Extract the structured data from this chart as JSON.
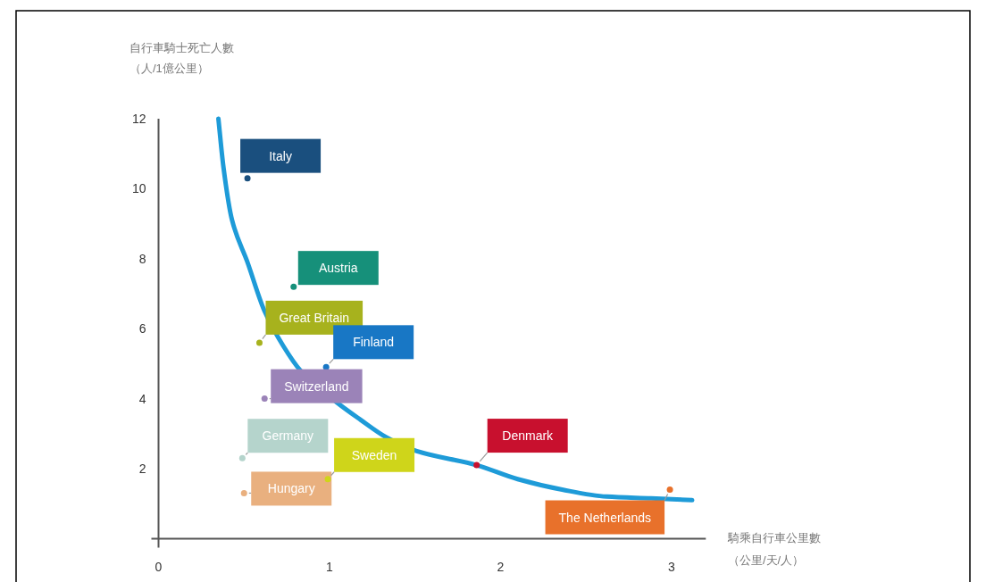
{
  "chart_data": {
    "type": "line",
    "xlabel": "騎乘自行車公里數（公里/天/人）",
    "ylabel": "自行車騎士死亡人數（人/1億公里）",
    "xlim": [
      0,
      3.2
    ],
    "ylim": [
      0,
      12
    ],
    "xticks": [
      0,
      1,
      2,
      3
    ],
    "yticks": [
      2,
      4,
      6,
      8,
      10,
      12
    ],
    "series": [
      {
        "color": "#1e9bd8",
        "line_style": "solid",
        "x": [
          0.35,
          0.38,
          0.43,
          0.52,
          0.62,
          0.73,
          0.83,
          1.04,
          1.18,
          1.33,
          1.51,
          1.86,
          2.1,
          2.36,
          2.62,
          2.88,
          3.12
        ],
        "values": [
          12.0,
          10.6,
          9.1,
          7.9,
          6.5,
          5.5,
          4.8,
          3.9,
          3.4,
          2.9,
          2.5,
          2.1,
          1.7,
          1.4,
          1.2,
          1.15,
          1.1
        ]
      },
      {
        "type": "scatter",
        "marker": "circle",
        "x": [
          0.52,
          0.79,
          0.59,
          0.98,
          0.62,
          0.49,
          0.5,
          0.99,
          1.86,
          2.99
        ],
        "values": [
          10.3,
          7.2,
          5.6,
          4.9,
          4.0,
          2.3,
          1.3,
          1.7,
          2.1,
          1.4
        ],
        "colors": [
          "#1a4f7e",
          "#16907a",
          "#a7b21d",
          "#1877c5",
          "#9b83b8",
          "#b5d4cc",
          "#e9b07f",
          "#cfd51a",
          "#c8102e",
          "#e8712b"
        ],
        "value_labels": [
          "Italy",
          "Austria",
          "Great Britain",
          "Finland",
          "Switzerland",
          "Germany",
          "Hungary",
          "Sweden",
          "Denmark",
          "The Netherlands"
        ]
      }
    ]
  }
}
